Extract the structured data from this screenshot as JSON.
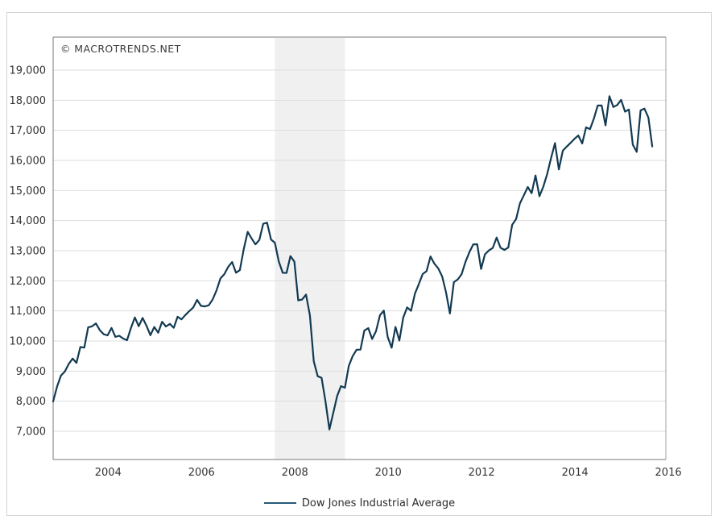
{
  "watermark": "© MACROTRENDS.NET",
  "legend": {
    "label": "Dow Jones Industrial Average"
  },
  "colors": {
    "line": "#123a52",
    "legend_swatch": "#255b77",
    "grid": "#dddddd",
    "band": "#f0f0f0",
    "border_dark": "#787878",
    "border_light": "#a0a0a0",
    "tick_text": "#333333",
    "outer_border": "#d4d4d4",
    "watermark_text": "#3c3c3c"
  },
  "chart_data": {
    "type": "line",
    "title": "",
    "series_name": "Dow Jones Industrial Average",
    "frequency": "monthly",
    "start_month": "2003-03",
    "values": [
      7992,
      8480,
      8850,
      8985,
      9234,
      9416,
      9275,
      9801,
      9782,
      10454,
      10488,
      10584,
      10358,
      10226,
      10188,
      10435,
      10140,
      10174,
      10080,
      10027,
      10428,
      10783,
      10490,
      10766,
      10504,
      10193,
      10467,
      10275,
      10641,
      10482,
      10569,
      10440,
      10806,
      10718,
      10865,
      10993,
      11109,
      11367,
      11168,
      11150,
      11186,
      11381,
      11679,
      12080,
      12222,
      12463,
      12622,
      12269,
      12354,
      13063,
      13628,
      13409,
      13212,
      13358,
      13896,
      13930,
      13372,
      13265,
      12650,
      12266,
      12263,
      12820,
      12638,
      11350,
      11378,
      11544,
      10851,
      9325,
      8829,
      8776,
      8001,
      7063,
      7609,
      8168,
      8500,
      8447,
      9172,
      9496,
      9712,
      9713,
      10345,
      10428,
      10067,
      10325,
      10857,
      11009,
      10137,
      9774,
      10466,
      10015,
      10788,
      11118,
      11006,
      11578,
      11892,
      12226,
      12320,
      12811,
      12570,
      12414,
      12143,
      11614,
      10913,
      11955,
      12046,
      12218,
      12633,
      12952,
      13212,
      13214,
      12393,
      12880,
      13009,
      13091,
      13437,
      13096,
      13026,
      13104,
      13861,
      14054,
      14579,
      14840,
      15116,
      14910,
      15500,
      14810,
      15130,
      15546,
      16086,
      16577,
      15699,
      16322,
      16458,
      16581,
      16717,
      16827,
      16563,
      17098,
      17043,
      17391,
      17828,
      17823,
      17165,
      18133,
      17776,
      17841,
      18011,
      17620,
      17690,
      16528,
      16285,
      17664,
      17720,
      17425,
      16466
    ],
    "y_ticks": [
      7000,
      8000,
      9000,
      10000,
      11000,
      12000,
      13000,
      14000,
      15000,
      16000,
      17000,
      18000,
      19000
    ],
    "y_tick_labels": [
      "7,000",
      "8,000",
      "9,000",
      "10,000",
      "11,000",
      "12,000",
      "13,000",
      "14,000",
      "15,000",
      "16,000",
      "17,000",
      "18,000",
      "19,000"
    ],
    "x_tick_labels": [
      "2004",
      "2006",
      "2008",
      "2010",
      "2012",
      "2014",
      "2016"
    ],
    "x_tick_years": [
      2004,
      2006,
      2008,
      2010,
      2012,
      2014,
      2016
    ],
    "ylim": [
      6063,
      20098
    ],
    "grid": "horizontal",
    "legend_position": "bottom",
    "recession_band": {
      "start": "2007-12",
      "end": "2009-06"
    }
  }
}
